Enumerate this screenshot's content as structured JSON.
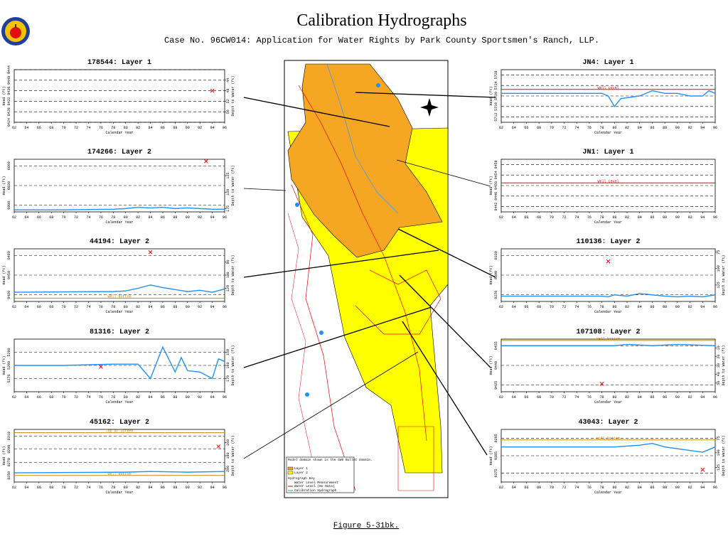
{
  "header": {
    "title": "Calibration Hydrographs",
    "subtitle": "Case No. 96CW014: Application for Water Rights by Park County Sportsmen's Ranch, LLP."
  },
  "caption": "Figure 5-31bk.",
  "map": {
    "legend": [
      "Model domain shown is the GWS Bullet domain.",
      "Layer 1",
      "Layer 2",
      "Hydrograph Key",
      "Water Level Measurement",
      "Water Level (No Data)",
      "Calibration Hydrograph"
    ]
  },
  "chart_data": [
    {
      "type": "line",
      "title": "178544: Layer 1",
      "xlabel": "Calendar Year",
      "ylabel": "Head (ft)",
      "y2label": "Depth to Water (ft)",
      "xlim": [
        62,
        96
      ],
      "xticks": [
        62,
        64,
        66,
        68,
        70,
        72,
        74,
        76,
        78,
        80,
        82,
        84,
        86,
        88,
        90,
        92,
        94,
        96
      ],
      "ylim": [
        9424,
        9444
      ],
      "yticks": [
        9424,
        9428,
        9432,
        9436,
        9440,
        9444
      ],
      "y2lim": [
        60,
        40
      ],
      "y2ticks": [
        44,
        48,
        52,
        56
      ],
      "grid": true,
      "series": [
        {
          "color": "#ff0000",
          "marker": "x",
          "x": [
            94
          ],
          "values": [
            9436
          ]
        }
      ]
    },
    {
      "type": "line",
      "title": "174266: Layer 2",
      "xlabel": "Calendar Year",
      "ylabel": "Head (ft)",
      "y2label": "Depth to Water (ft)",
      "xlim": [
        62,
        96
      ],
      "xticks": [
        62,
        64,
        66,
        68,
        70,
        72,
        74,
        76,
        78,
        80,
        82,
        84,
        86,
        88,
        90,
        92,
        94,
        96
      ],
      "ylim": [
        6790,
        6870
      ],
      "yticks": [
        6800,
        6830,
        6860
      ],
      "y2lim": [
        180,
        100
      ],
      "y2ticks": [
        125,
        150,
        175
      ],
      "grid": true,
      "series": [
        {
          "color": "#1e90ff",
          "marker": "line",
          "x": [
            62,
            70,
            78,
            80,
            82,
            84,
            86,
            88,
            90,
            92,
            94,
            96
          ],
          "values": [
            6793,
            6793,
            6794,
            6795,
            6797,
            6796,
            6797,
            6795,
            6796,
            6795,
            6794,
            6794
          ]
        },
        {
          "color": "#ff0000",
          "marker": "x",
          "x": [
            93
          ],
          "values": [
            6867
          ]
        }
      ]
    },
    {
      "type": "line",
      "title": "44194: Layer 2",
      "xlabel": "Calendar Year",
      "ylabel": "Head (ft)",
      "y2label": "Depth to Water (ft)",
      "xlim": [
        62,
        96
      ],
      "xticks": [
        62,
        64,
        66,
        68,
        70,
        72,
        74,
        76,
        78,
        80,
        82,
        84,
        86,
        88,
        90,
        92,
        94,
        96
      ],
      "ylim": [
        9410,
        9490
      ],
      "yticks": [
        9420,
        9450,
        9480
      ],
      "y2lim": [
        140,
        60
      ],
      "y2ticks": [
        80,
        100,
        120
      ],
      "grid": true,
      "annotations": [
        {
          "label": "Well Bottom",
          "value": 9415,
          "color": "#c8860b"
        }
      ],
      "series": [
        {
          "color": "#1e90ff",
          "marker": "line",
          "x": [
            62,
            78,
            80,
            82,
            84,
            86,
            88,
            90,
            92,
            94,
            96
          ],
          "values": [
            9424,
            9425,
            9426,
            9430,
            9435,
            9431,
            9428,
            9425,
            9427,
            9424,
            9429
          ]
        },
        {
          "color": "#ff0000",
          "marker": "x",
          "x": [
            84
          ],
          "values": [
            9485
          ]
        }
      ]
    },
    {
      "type": "line",
      "title": "81316: Layer 2",
      "xlabel": "Calendar Year",
      "ylabel": "Head (ft)",
      "y2label": "Depth to Water (ft)",
      "xlim": [
        62,
        96
      ],
      "xticks": [
        62,
        64,
        66,
        68,
        70,
        72,
        74,
        76,
        78,
        80,
        82,
        84,
        86,
        88,
        90,
        92,
        94,
        96
      ],
      "ylim": [
        5260,
        5300
      ],
      "yticks": [
        5270,
        5280,
        5290
      ],
      "y2lim": [
        180,
        140
      ],
      "y2ticks": [
        150,
        160,
        170
      ],
      "grid": true,
      "series": [
        {
          "color": "#1e90ff",
          "marker": "line",
          "x": [
            62,
            70,
            78,
            82,
            84,
            85,
            86,
            88,
            89,
            90,
            92,
            94,
            95,
            96
          ],
          "values": [
            5280,
            5280,
            5281,
            5281,
            5270,
            5282,
            5294,
            5275,
            5286,
            5276,
            5275,
            5270,
            5285,
            5283
          ]
        },
        {
          "color": "#ff0000",
          "marker": "x",
          "x": [
            76
          ],
          "values": [
            5279
          ]
        }
      ]
    },
    {
      "type": "line",
      "title": "45162: Layer 2",
      "xlabel": "Calendar Year",
      "ylabel": "Head (ft)",
      "y2label": "Depth to Water (ft)",
      "xlim": [
        62,
        96
      ],
      "xticks": [
        62,
        64,
        66,
        68,
        70,
        72,
        74,
        76,
        78,
        80,
        82,
        84,
        86,
        88,
        90,
        92,
        94,
        96
      ],
      "ylim": [
        8240,
        8320
      ],
      "yticks": [
        8250,
        8270,
        8290,
        8310
      ],
      "y2lim": [
        220,
        140
      ],
      "y2ticks": [
        160,
        180,
        200
      ],
      "grid": true,
      "annotations": [
        {
          "label": "Top of Screen",
          "value": 8315,
          "color": "#c8860b"
        },
        {
          "label": "Well Bottom",
          "value": 8250,
          "color": "#c8860b"
        }
      ],
      "series": [
        {
          "color": "#1e90ff",
          "marker": "line",
          "x": [
            62,
            80,
            84,
            90,
            96
          ],
          "values": [
            8254,
            8255,
            8256,
            8255,
            8256
          ]
        },
        {
          "color": "#ff0000",
          "marker": "x",
          "x": [
            95
          ],
          "values": [
            8294
          ]
        }
      ]
    },
    {
      "type": "line",
      "title": "JN4: Layer 1",
      "xlabel": "Calendar Year",
      "ylabel": "Head (ft)",
      "xlim": [
        62,
        96
      ],
      "xticks": [
        62,
        64,
        66,
        68,
        70,
        72,
        74,
        76,
        78,
        80,
        82,
        84,
        86,
        88,
        90,
        92,
        94,
        96
      ],
      "ylim": [
        5710,
        5730
      ],
      "yticks": [
        5712,
        5716,
        5720,
        5724,
        5728
      ],
      "grid": true,
      "annotations": [
        {
          "label": "Well Level",
          "value": 5722.5,
          "color": "#ff0000"
        }
      ],
      "series": [
        {
          "color": "#1e90ff",
          "marker": "line",
          "x": [
            62,
            70,
            78,
            79,
            80,
            81,
            84,
            86,
            88,
            90,
            92,
            94,
            95,
            96
          ],
          "values": [
            5721,
            5721,
            5721,
            5720,
            5716,
            5719,
            5720,
            5722,
            5721,
            5721,
            5720,
            5720,
            5722,
            5721
          ]
        }
      ]
    },
    {
      "type": "line",
      "title": "JN1: Layer 1",
      "xlabel": "Calendar Year",
      "ylabel": "Head (ft)",
      "xlim": [
        62,
        96
      ],
      "xticks": [
        62,
        64,
        66,
        68,
        70,
        72,
        74,
        76,
        78,
        80,
        82,
        84,
        86,
        88,
        90,
        92,
        94,
        96
      ],
      "ylim": [
        9440,
        9460
      ],
      "yticks": [
        9442,
        9446,
        9450,
        9454,
        9458
      ],
      "grid": true,
      "annotations": [
        {
          "label": "Well Level",
          "value": 9451,
          "color": "#ff0000"
        }
      ],
      "series": []
    },
    {
      "type": "line",
      "title": "110136: Layer 2",
      "xlabel": "Calendar Year",
      "ylabel": "Head (ft)",
      "y2label": "Depth to Water (ft)",
      "xlim": [
        62,
        96
      ],
      "xticks": [
        62,
        64,
        66,
        68,
        70,
        72,
        74,
        76,
        78,
        80,
        82,
        84,
        86,
        88,
        90,
        92,
        94,
        96
      ],
      "ylim": [
        8260,
        8340
      ],
      "yticks": [
        8270,
        8300,
        8330
      ],
      "y2lim": [
        150,
        70
      ],
      "y2ticks": [
        75,
        100,
        125
      ],
      "grid": true,
      "series": [
        {
          "color": "#1e90ff",
          "marker": "line",
          "x": [
            62,
            78,
            79,
            80,
            82,
            84,
            86,
            88,
            90,
            92,
            94,
            96
          ],
          "values": [
            8268,
            8268,
            8267,
            8270,
            8268,
            8272,
            8270,
            8268,
            8267,
            8268,
            8267,
            8270
          ]
        },
        {
          "color": "#ff0000",
          "marker": "x",
          "x": [
            79
          ],
          "values": [
            8321
          ]
        }
      ]
    },
    {
      "type": "line",
      "title": "107108: Layer 2",
      "xlabel": "Calendar Year",
      "ylabel": "Head (ft)",
      "y2label": "Depth to Water (ft)",
      "xlim": [
        62,
        96
      ],
      "xticks": [
        62,
        64,
        66,
        68,
        70,
        72,
        74,
        76,
        78,
        80,
        82,
        84,
        86,
        88,
        90,
        92,
        94,
        96
      ],
      "ylim": [
        9420,
        9460
      ],
      "yticks": [
        9425,
        9440,
        9455
      ],
      "y2lim": [
        60,
        0
      ],
      "y2ticks": [
        10,
        20,
        30,
        40,
        50
      ],
      "grid": true,
      "annotations": [
        {
          "label": "Well Bottom",
          "value": 9459,
          "color": "#c8860b"
        }
      ],
      "series": [
        {
          "color": "#1e90ff",
          "marker": "line",
          "x": [
            62,
            80,
            82,
            86,
            90,
            96
          ],
          "values": [
            9455,
            9455,
            9456,
            9455,
            9456,
            9455
          ]
        },
        {
          "color": "#ff0000",
          "marker": "x",
          "x": [
            78
          ],
          "values": [
            9426
          ]
        }
      ]
    },
    {
      "type": "line",
      "title": "43043: Layer 2",
      "xlabel": "Calendar Year",
      "ylabel": "Head (ft)",
      "y2label": "Depth to Water (ft)",
      "xlim": [
        62,
        96
      ],
      "xticks": [
        62,
        64,
        66,
        68,
        70,
        72,
        74,
        76,
        78,
        80,
        82,
        84,
        86,
        88,
        90,
        92,
        94,
        96
      ],
      "ylim": [
        9370,
        9400
      ],
      "yticks": [
        9375,
        9385,
        9395
      ],
      "y2lim": [
        150,
        60
      ],
      "y2ticks": [
        75,
        100,
        125
      ],
      "grid": true,
      "annotations": [
        {
          "label": "Well Bottom",
          "value": 9394,
          "color": "#c8860b"
        }
      ],
      "series": [
        {
          "color": "#1e90ff",
          "marker": "line",
          "x": [
            62,
            78,
            80,
            84,
            86,
            88,
            90,
            94,
            96
          ],
          "values": [
            9390,
            9390,
            9390,
            9391,
            9392,
            9390,
            9389,
            9387,
            9390
          ]
        },
        {
          "color": "#ff0000",
          "marker": "x",
          "x": [
            94
          ],
          "values": [
            9377
          ]
        }
      ]
    }
  ]
}
